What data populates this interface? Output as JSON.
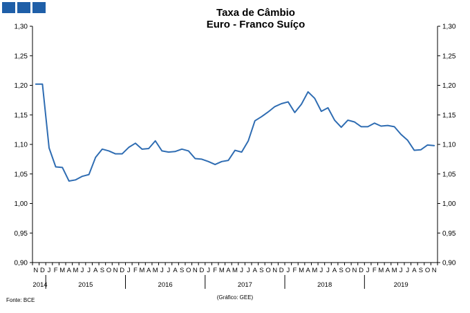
{
  "header": {
    "brand_squares": 3,
    "brand_color": "#1f5fa8"
  },
  "chart_data": {
    "type": "line",
    "title": "Taxa de Câmbio",
    "subtitle": "Euro - Franco Suíço",
    "ylim": [
      0.9,
      1.3
    ],
    "yticks": [
      "0,90",
      "0,95",
      "1,00",
      "1,05",
      "1,10",
      "1,15",
      "1,20",
      "1,25",
      "1,30"
    ],
    "grid": false,
    "line_color": "#2e6cb2",
    "month_labels": [
      "N",
      "D",
      "J",
      "F",
      "M",
      "A",
      "M",
      "J",
      "J",
      "A",
      "S",
      "O",
      "N",
      "D",
      "J",
      "F",
      "M",
      "A",
      "M",
      "J",
      "J",
      "A",
      "S",
      "O",
      "N",
      "D",
      "J",
      "F",
      "M",
      "A",
      "M",
      "J",
      "J",
      "A",
      "S",
      "O",
      "N",
      "D",
      "J",
      "F",
      "M",
      "A",
      "M",
      "J",
      "J",
      "A",
      "S",
      "O",
      "N",
      "D",
      "J",
      "F",
      "M",
      "A",
      "M",
      "J",
      "J",
      "A",
      "S",
      "O",
      "N"
    ],
    "years": [
      {
        "label": "2014",
        "from": 0,
        "to": 1
      },
      {
        "label": "2015",
        "from": 2,
        "to": 13
      },
      {
        "label": "2016",
        "from": 14,
        "to": 25
      },
      {
        "label": "2017",
        "from": 26,
        "to": 37
      },
      {
        "label": "2018",
        "from": 38,
        "to": 49
      },
      {
        "label": "2019",
        "from": 50,
        "to": 60
      }
    ],
    "series": [
      {
        "values": [
          1.202,
          1.202,
          1.094,
          1.062,
          1.061,
          1.038,
          1.04,
          1.046,
          1.049,
          1.078,
          1.092,
          1.089,
          1.084,
          1.084,
          1.095,
          1.102,
          1.092,
          1.093,
          1.106,
          1.089,
          1.087,
          1.088,
          1.092,
          1.089,
          1.076,
          1.075,
          1.071,
          1.066,
          1.071,
          1.073,
          1.09,
          1.087,
          1.106,
          1.14,
          1.147,
          1.155,
          1.164,
          1.169,
          1.172,
          1.154,
          1.168,
          1.189,
          1.178,
          1.156,
          1.162,
          1.141,
          1.129,
          1.141,
          1.138,
          1.13,
          1.13,
          1.136,
          1.131,
          1.132,
          1.13,
          1.117,
          1.107,
          1.09,
          1.091,
          1.099,
          1.098
        ]
      }
    ]
  },
  "footer": {
    "source": "Fonte: BCE",
    "credit": "(Gráfico: GEE)"
  }
}
